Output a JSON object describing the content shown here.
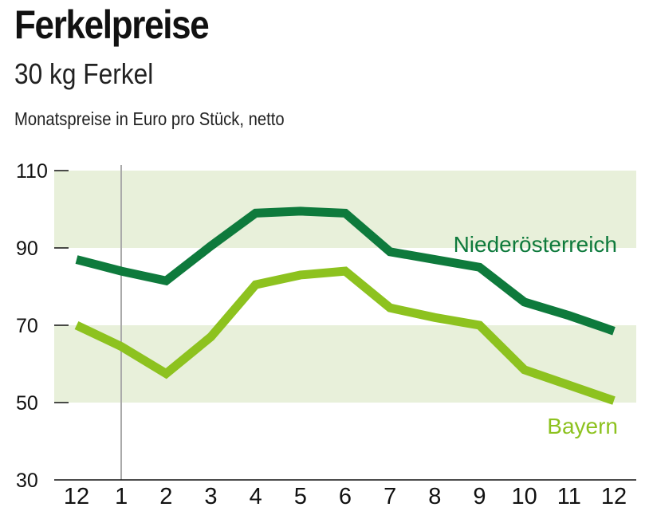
{
  "title": "Ferkelpreise",
  "subtitle": "30 kg Ferkel",
  "note": "Monatspreise in Euro pro Stück, netto",
  "chart_data": {
    "type": "line",
    "title": "Ferkelpreise",
    "subtitle": "30 kg Ferkel",
    "ylabel": "Monatspreise in Euro pro Stück, netto",
    "categories": [
      "12",
      "1",
      "2",
      "3",
      "4",
      "5",
      "6",
      "7",
      "8",
      "9",
      "10",
      "11",
      "12"
    ],
    "ylim": [
      30,
      110
    ],
    "yticks": [
      30,
      50,
      70,
      90,
      110
    ],
    "shaded_bands": [
      [
        50,
        70
      ],
      [
        90,
        110
      ]
    ],
    "year_divider_after_category": "12",
    "series": [
      {
        "name": "Niederösterreich",
        "color": "#0e7a3c",
        "values": [
          87,
          84,
          81.5,
          90.5,
          99,
          99.5,
          99,
          89,
          87,
          85,
          76,
          72.5,
          68.5
        ]
      },
      {
        "name": "Bayern",
        "color": "#8dc21f",
        "values": [
          70,
          64.5,
          57.5,
          67,
          80.5,
          83,
          84,
          74.5,
          72,
          70,
          58.5,
          54.5,
          50.5
        ]
      }
    ],
    "band_color": "#e8f0da",
    "legend": "inline-right"
  }
}
